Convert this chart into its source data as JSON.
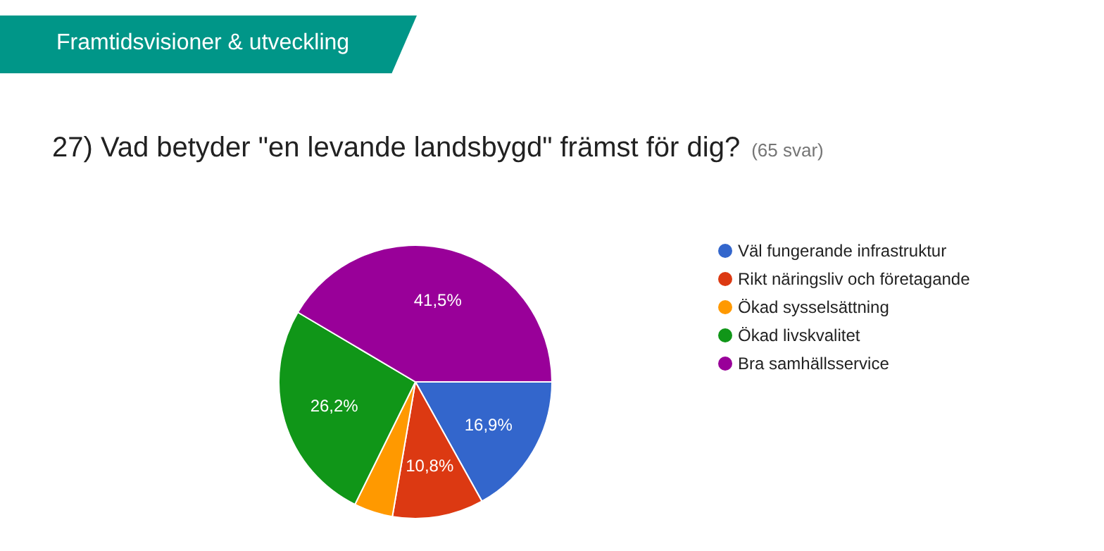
{
  "chart_data": {
    "type": "pie",
    "title": "27) Vad betyder \"en levande landsbygd\" främst för dig?",
    "subtitle": "(65 svar)",
    "annotations": [
      "Framtidsvisioner & utveckling"
    ],
    "categories": [
      "Väl fungerande infrastruktur",
      "Rikt näringsliv och företagande",
      "Ökad sysselsättning",
      "Ökad livskvalitet",
      "Bra samhällsservice"
    ],
    "values": [
      16.9,
      10.8,
      4.6,
      26.2,
      41.5
    ],
    "colors": [
      "#3366cc",
      "#dc3912",
      "#ff9900",
      "#109618",
      "#990099"
    ],
    "value_labels": [
      "16,9%",
      "10,8%",
      null,
      "26,2%",
      "41,5%"
    ],
    "legend": "right"
  }
}
